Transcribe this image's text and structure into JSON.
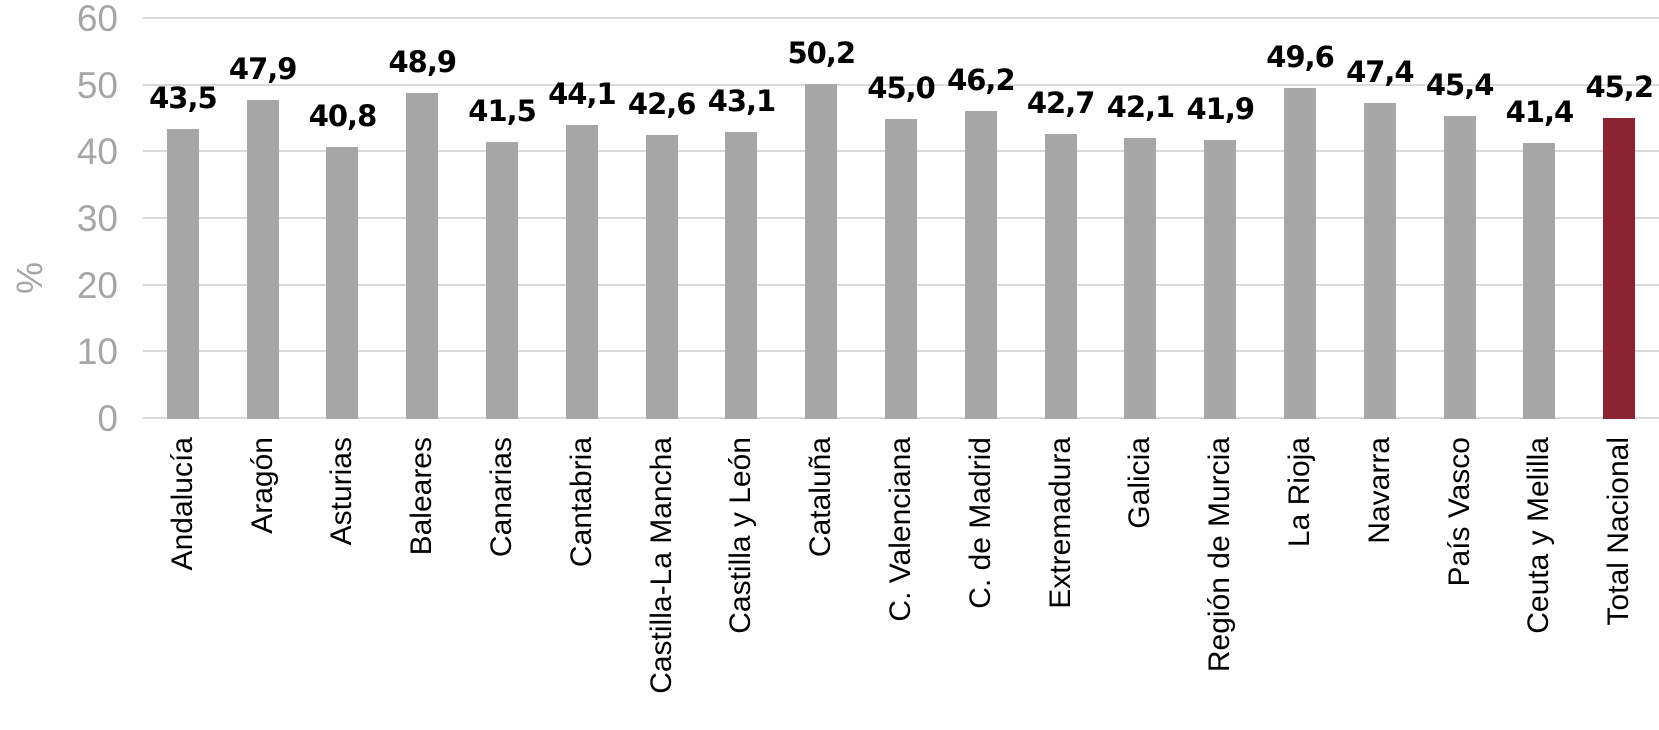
{
  "chart_data": {
    "type": "bar",
    "title": "",
    "xlabel": "",
    "ylabel": "%",
    "categories": [
      "Andalucía",
      "Aragón",
      "Asturias",
      "Baleares",
      "Canarias",
      "Cantabria",
      "Castilla-La Mancha",
      "Castilla y León",
      "Cataluña",
      "C. Valenciana",
      "C. de Madrid",
      "Extremadura",
      "Galicia",
      "Región de Murcia",
      "La Rioja",
      "Navarra",
      "País Vasco",
      "Ceuta y Melilla",
      "Total Nacional"
    ],
    "values": [
      43.5,
      47.9,
      40.8,
      48.9,
      41.5,
      44.1,
      42.6,
      43.1,
      50.2,
      45.0,
      46.2,
      42.7,
      42.1,
      41.9,
      49.6,
      47.4,
      45.4,
      41.4,
      45.2
    ],
    "value_labels": [
      "43,5",
      "47,9",
      "40,8",
      "48,9",
      "41,5",
      "44,1",
      "42,6",
      "43,1",
      "50,2",
      "45,0",
      "46,2",
      "42,7",
      "42,1",
      "41,9",
      "49,6",
      "47,4",
      "45,4",
      "41,4",
      "45,2"
    ],
    "ylim": [
      0,
      60
    ],
    "yticks": [
      0,
      10,
      20,
      30,
      40,
      50,
      60
    ],
    "grid": true,
    "legend": "none",
    "bar_color": "#a6a6a6",
    "highlight_color": "#8b2332",
    "highlight_index": 18,
    "gridline_color": "#d9d9d9",
    "axis_text_color": "#a6a6a6",
    "label_text_color": "#000000"
  }
}
